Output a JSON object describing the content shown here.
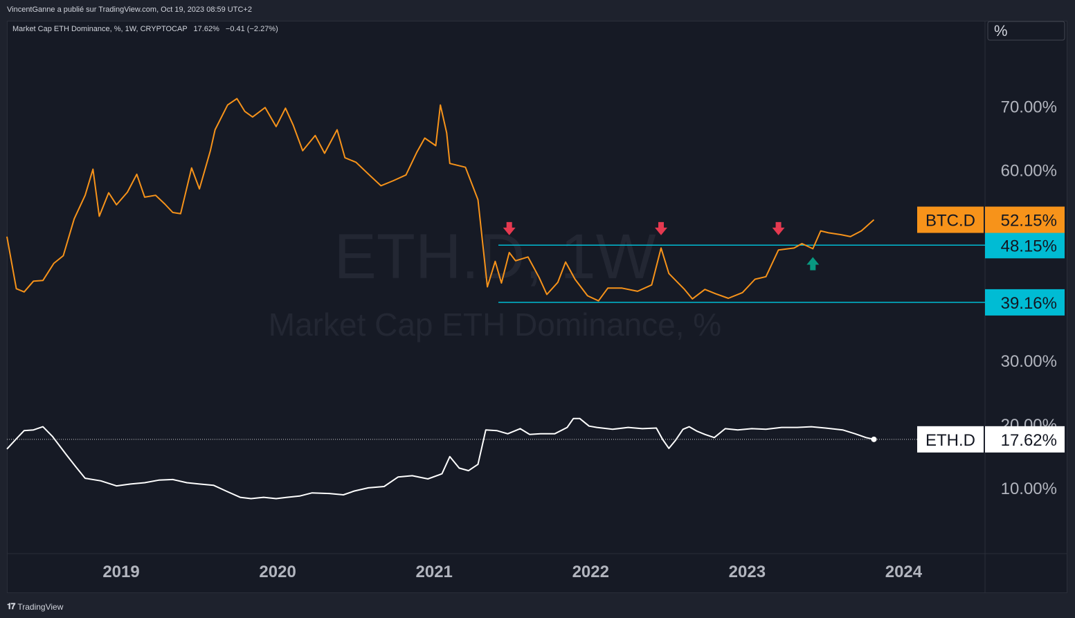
{
  "header": {
    "publisher": "VincentGanne a publié sur TradingView.com, Oct 19, 2023 08:59 UTC+2"
  },
  "legend": {
    "symbol": "Market Cap ETH Dominance, %, 1W, CRYPTOCAP",
    "last": "17.62%",
    "change": "−0.41 (−2.27%)"
  },
  "watermark": {
    "symbol": "ETH.D, 1W",
    "description": "Market Cap ETH Dominance, %"
  },
  "axis": {
    "unit_label": "%",
    "y_ticks": [
      "10.00%",
      "20.00%",
      "30.00%",
      "60.00%",
      "70.00%"
    ],
    "x_ticks": [
      "2019",
      "2020",
      "2021",
      "2022",
      "2023",
      "2024"
    ]
  },
  "price_labels": {
    "btc": {
      "name": "BTC.D",
      "value": "52.15%"
    },
    "resistance": {
      "value": "48.15%"
    },
    "support": {
      "value": "39.16%"
    },
    "eth": {
      "name": "ETH.D",
      "value": "17.62%"
    }
  },
  "footer": {
    "brand": "TradingView"
  },
  "colors": {
    "background": "#161a25",
    "btc_line": "#f7931a",
    "eth_line": "#ffffff",
    "level_line": "#00bcd4",
    "arrow_down": "#e53950",
    "arrow_up": "#089981"
  },
  "chart_data": {
    "type": "line",
    "ylim": [
      4,
      78
    ],
    "xlim": [
      2018.27,
      2024.52
    ],
    "levels": [
      48.15,
      39.16
    ],
    "arrows": [
      {
        "dir": "down",
        "x": 2021.48,
        "y": 50.7
      },
      {
        "dir": "down",
        "x": 2022.45,
        "y": 50.7
      },
      {
        "dir": "down",
        "x": 2023.2,
        "y": 50.7
      },
      {
        "dir": "up",
        "x": 2023.42,
        "y": 45.3
      }
    ],
    "series": [
      {
        "name": "BTC.D",
        "values": [
          [
            2018.27,
            49.5
          ],
          [
            2018.33,
            41.3
          ],
          [
            2018.38,
            40.8
          ],
          [
            2018.44,
            42.5
          ],
          [
            2018.5,
            42.6
          ],
          [
            2018.57,
            45.3
          ],
          [
            2018.63,
            46.5
          ],
          [
            2018.7,
            52.3
          ],
          [
            2018.77,
            56
          ],
          [
            2018.82,
            60.1
          ],
          [
            2018.86,
            52.7
          ],
          [
            2018.92,
            56.4
          ],
          [
            2018.97,
            54.5
          ],
          [
            2019.04,
            56.5
          ],
          [
            2019.1,
            59.3
          ],
          [
            2019.15,
            55.7
          ],
          [
            2019.22,
            56
          ],
          [
            2019.28,
            54.6
          ],
          [
            2019.33,
            53.3
          ],
          [
            2019.38,
            53.1
          ],
          [
            2019.45,
            60.3
          ],
          [
            2019.5,
            57
          ],
          [
            2019.57,
            63
          ],
          [
            2019.6,
            66.3
          ],
          [
            2019.68,
            70.2
          ],
          [
            2019.74,
            71.2
          ],
          [
            2019.79,
            69.2
          ],
          [
            2019.84,
            68.3
          ],
          [
            2019.92,
            69.8
          ],
          [
            2019.99,
            66.8
          ],
          [
            2020.05,
            69.7
          ],
          [
            2020.1,
            67
          ],
          [
            2020.16,
            63
          ],
          [
            2020.24,
            65.4
          ],
          [
            2020.3,
            62.6
          ],
          [
            2020.38,
            66.3
          ],
          [
            2020.43,
            61.9
          ],
          [
            2020.5,
            61.2
          ],
          [
            2020.59,
            59.1
          ],
          [
            2020.66,
            57.5
          ],
          [
            2020.74,
            58.3
          ],
          [
            2020.82,
            59.2
          ],
          [
            2020.89,
            62.8
          ],
          [
            2020.94,
            65
          ],
          [
            2021.01,
            63.8
          ],
          [
            2021.04,
            70.2
          ],
          [
            2021.08,
            65.8
          ],
          [
            2021.1,
            61
          ],
          [
            2021.2,
            60.4
          ],
          [
            2021.28,
            55.3
          ],
          [
            2021.34,
            41.6
          ],
          [
            2021.39,
            45.6
          ],
          [
            2021.43,
            42.2
          ],
          [
            2021.48,
            47
          ],
          [
            2021.52,
            45.7
          ],
          [
            2021.6,
            46.3
          ],
          [
            2021.67,
            43.1
          ],
          [
            2021.72,
            40.4
          ],
          [
            2021.79,
            42.3
          ],
          [
            2021.84,
            45.5
          ],
          [
            2021.9,
            42.8
          ],
          [
            2021.98,
            40.2
          ],
          [
            2022.05,
            39.4
          ],
          [
            2022.11,
            41.4
          ],
          [
            2022.2,
            41.4
          ],
          [
            2022.3,
            40.9
          ],
          [
            2022.39,
            41.9
          ],
          [
            2022.45,
            47.7
          ],
          [
            2022.5,
            43.7
          ],
          [
            2022.6,
            41.2
          ],
          [
            2022.65,
            39.7
          ],
          [
            2022.73,
            41.2
          ],
          [
            2022.8,
            40.5
          ],
          [
            2022.88,
            39.8
          ],
          [
            2022.97,
            40.7
          ],
          [
            2023.05,
            42.8
          ],
          [
            2023.12,
            43.2
          ],
          [
            2023.2,
            47.4
          ],
          [
            2023.3,
            47.7
          ],
          [
            2023.35,
            48.4
          ],
          [
            2023.42,
            47.6
          ],
          [
            2023.47,
            50.4
          ],
          [
            2023.52,
            50.1
          ],
          [
            2023.6,
            49.8
          ],
          [
            2023.66,
            49.5
          ],
          [
            2023.73,
            50.4
          ],
          [
            2023.81,
            52.15
          ]
        ]
      },
      {
        "name": "ETH.D",
        "values": [
          [
            2018.27,
            16.1
          ],
          [
            2018.33,
            17.7
          ],
          [
            2018.38,
            19
          ],
          [
            2018.44,
            19.1
          ],
          [
            2018.5,
            19.6
          ],
          [
            2018.56,
            18.1
          ],
          [
            2018.65,
            15.2
          ],
          [
            2018.71,
            13.3
          ],
          [
            2018.77,
            11.5
          ],
          [
            2018.87,
            11.1
          ],
          [
            2018.97,
            10.3
          ],
          [
            2019.06,
            10.6
          ],
          [
            2019.15,
            10.8
          ],
          [
            2019.24,
            11.2
          ],
          [
            2019.33,
            11.3
          ],
          [
            2019.42,
            10.8
          ],
          [
            2019.5,
            10.6
          ],
          [
            2019.59,
            10.4
          ],
          [
            2019.67,
            9.5
          ],
          [
            2019.76,
            8.5
          ],
          [
            2019.83,
            8.3
          ],
          [
            2019.91,
            8.5
          ],
          [
            2019.99,
            8.3
          ],
          [
            2020.06,
            8.5
          ],
          [
            2020.14,
            8.7
          ],
          [
            2020.22,
            9.2
          ],
          [
            2020.33,
            9.1
          ],
          [
            2020.42,
            8.9
          ],
          [
            2020.49,
            9.5
          ],
          [
            2020.58,
            10
          ],
          [
            2020.68,
            10.2
          ],
          [
            2020.77,
            11.7
          ],
          [
            2020.86,
            11.9
          ],
          [
            2020.96,
            11.4
          ],
          [
            2021.05,
            12.2
          ],
          [
            2021.1,
            14.9
          ],
          [
            2021.16,
            13.1
          ],
          [
            2021.22,
            12.7
          ],
          [
            2021.28,
            13.7
          ],
          [
            2021.33,
            19.1
          ],
          [
            2021.4,
            19
          ],
          [
            2021.47,
            18.5
          ],
          [
            2021.55,
            19.3
          ],
          [
            2021.61,
            18.4
          ],
          [
            2021.68,
            18.5
          ],
          [
            2021.77,
            18.5
          ],
          [
            2021.85,
            19.5
          ],
          [
            2021.89,
            20.9
          ],
          [
            2021.93,
            20.9
          ],
          [
            2021.99,
            19.7
          ],
          [
            2022.04,
            19.5
          ],
          [
            2022.14,
            19.2
          ],
          [
            2022.24,
            19.5
          ],
          [
            2022.33,
            19.3
          ],
          [
            2022.42,
            19.4
          ],
          [
            2022.46,
            17.6
          ],
          [
            2022.5,
            16.2
          ],
          [
            2022.54,
            17.4
          ],
          [
            2022.59,
            19.2
          ],
          [
            2022.63,
            19.6
          ],
          [
            2022.68,
            18.9
          ],
          [
            2022.73,
            18.4
          ],
          [
            2022.79,
            17.9
          ],
          [
            2022.86,
            19.3
          ],
          [
            2022.94,
            19.1
          ],
          [
            2023.03,
            19.3
          ],
          [
            2023.12,
            19.2
          ],
          [
            2023.22,
            19.5
          ],
          [
            2023.32,
            19.5
          ],
          [
            2023.41,
            19.6
          ],
          [
            2023.5,
            19.4
          ],
          [
            2023.61,
            19.1
          ],
          [
            2023.69,
            18.5
          ],
          [
            2023.76,
            17.9
          ],
          [
            2023.81,
            17.62
          ]
        ]
      }
    ]
  }
}
